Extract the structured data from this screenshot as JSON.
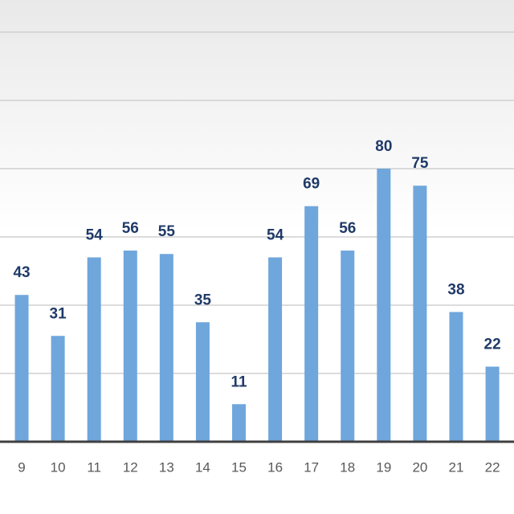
{
  "chart_data": {
    "type": "bar",
    "categories": [
      "9",
      "10",
      "11",
      "12",
      "13",
      "14",
      "15",
      "16",
      "17",
      "18",
      "19",
      "20",
      "21",
      "22"
    ],
    "values": [
      43,
      31,
      54,
      56,
      55,
      35,
      11,
      54,
      69,
      56,
      80,
      75,
      38,
      22
    ],
    "color": "#6fa6dc",
    "ylim": [
      0,
      129.4
    ],
    "yticks": [
      0,
      20,
      40,
      60,
      80,
      100,
      120
    ],
    "grid": true
  }
}
